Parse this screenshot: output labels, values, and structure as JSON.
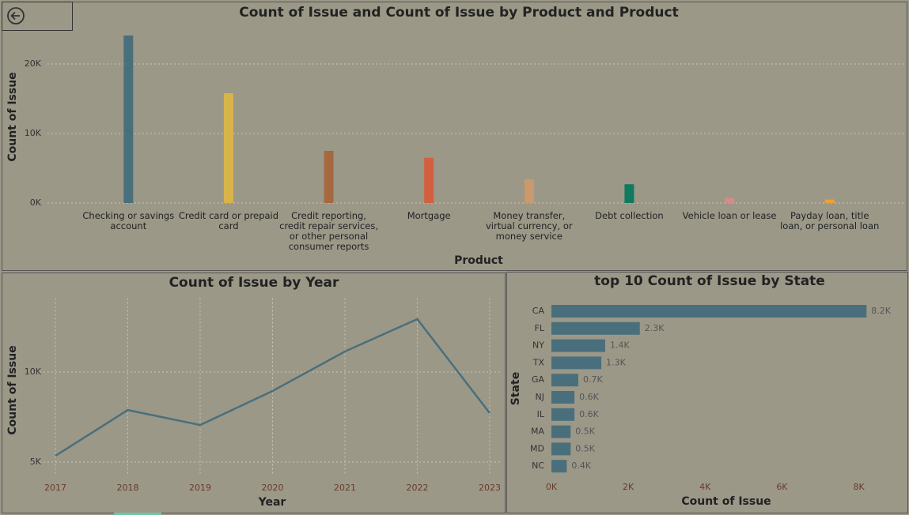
{
  "chart_data": [
    {
      "type": "bar",
      "title": "Count of Issue and Count of Issue by Product and Product",
      "x_label": "Product",
      "y_label": "Count of Issue",
      "categories": [
        "Checking or savings account",
        "Credit card or prepaid card",
        "Credit reporting, credit repair services, or other personal consumer reports",
        "Mortgage",
        "Money transfer, virtual currency, or money service",
        "Debt collection",
        "Vehicle loan or lease",
        "Payday loan, title loan, or personal loan"
      ],
      "values": [
        24100,
        15800,
        7500,
        6500,
        3400,
        2700,
        700,
        500
      ],
      "colors": [
        "#4a6f7c",
        "#d9b44a",
        "#a6683f",
        "#d35f3f",
        "#c89a6c",
        "#0e7a5e",
        "#d88a8a",
        "#f0a030"
      ],
      "ylim": [
        0,
        25000
      ],
      "yticks": [
        {
          "value": 0,
          "label": "0K"
        },
        {
          "value": 10000,
          "label": "10K"
        },
        {
          "value": 20000,
          "label": "20K"
        }
      ],
      "grid": true
    },
    {
      "type": "line",
      "title": "Count of Issue by Year",
      "x_label": "Year",
      "y_label": "Count of Issue",
      "x": [
        2017,
        2018,
        2019,
        2020,
        2021,
        2022,
        2023
      ],
      "values": [
        5350,
        7890,
        7060,
        8950,
        11140,
        12940,
        7720
      ],
      "color": "#4a6f7c",
      "xlim": [
        2017,
        2023
      ],
      "xticks": [
        2017,
        2018,
        2019,
        2020,
        2021,
        2022,
        2023
      ],
      "ylim": [
        4300,
        14100
      ],
      "yticks": [
        {
          "value": 5000,
          "label": "5K"
        },
        {
          "value": 10000,
          "label": "10K"
        }
      ],
      "grid": true
    },
    {
      "type": "hbar",
      "title": "top 10 Count of Issue by State",
      "x_label": "Count of Issue",
      "y_label": "State",
      "categories": [
        "CA",
        "FL",
        "NY",
        "TX",
        "GA",
        "NJ",
        "IL",
        "MA",
        "MD",
        "NC"
      ],
      "values": [
        8200,
        2300,
        1400,
        1300,
        700,
        600,
        600,
        500,
        500,
        400
      ],
      "value_labels": [
        "8.2K",
        "2.3K",
        "1.4K",
        "1.3K",
        "0.7K",
        "0.6K",
        "0.6K",
        "0.5K",
        "0.5K",
        "0.4K"
      ],
      "color": "#4a6f7c",
      "xlim": [
        0,
        8400
      ],
      "xticks": [
        {
          "value": 0,
          "label": "0K"
        },
        {
          "value": 2000,
          "label": "2K"
        },
        {
          "value": 4000,
          "label": "4K"
        },
        {
          "value": 6000,
          "label": "6K"
        },
        {
          "value": 8000,
          "label": "8K"
        }
      ],
      "grid": false
    }
  ]
}
